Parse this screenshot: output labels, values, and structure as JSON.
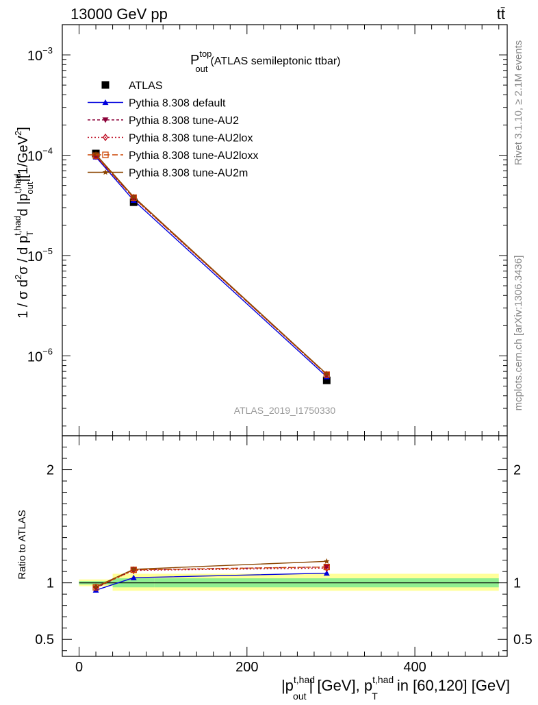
{
  "header": {
    "left": "13000 GeV pp",
    "right": "tt̄"
  },
  "side_labels": {
    "rivet": "Rivet 3.1.10, ≥ 2.1M events",
    "mcplots": "mcplots.cern.ch [arXiv:1306.3436]"
  },
  "analysis_id": "ATLAS_2019_I1750330",
  "colors": {
    "data": "#000000",
    "default": "#0000dd",
    "au2": "#8b0038",
    "au2lox": "#bb0018",
    "au2loxx": "#cc4400",
    "au2m": "#8b4500",
    "band_inner": "#90ee90",
    "band_outer": "#ffff99"
  },
  "chart_data": [
    {
      "type": "line",
      "panel": "main",
      "title": {
        "main": "P",
        "sup": "top",
        "sub": "out",
        "rest": "(ATLAS semileptonic ttbar)"
      },
      "ylabel": {
        "prefix": "1 / σ d",
        "p2": "2",
        "sigma": "σ / d p",
        "psup1": "t,had",
        "psub1": "T",
        "mid": " d |p",
        "psup2": "t,had",
        "psub2": "out",
        "unit": "|[1/GeV",
        "unitsup": "2",
        "close": "]"
      },
      "yscale": "log",
      "xlim": [
        -20,
        510
      ],
      "ylim": [
        1.6e-07,
        0.002
      ],
      "yticks": [
        {
          "value": 0.001,
          "base": "10",
          "exp": "−3"
        },
        {
          "value": 0.0001,
          "base": "10",
          "exp": "−4"
        },
        {
          "value": 1e-05,
          "base": "10",
          "exp": "−5"
        },
        {
          "value": 1e-06,
          "base": "10",
          "exp": "−6"
        }
      ],
      "legend_position": "top-left",
      "series": [
        {
          "key": "data",
          "name": "ATLAS",
          "marker": "square",
          "dash": "",
          "x": [
            20,
            65,
            295
          ],
          "y": [
            0.000104,
            3.4e-05,
            5.7e-07
          ]
        },
        {
          "key": "default",
          "name": "Pythia 8.308 default",
          "marker": "triangle-up",
          "dash": "",
          "x": [
            20,
            65,
            295
          ],
          "y": [
            9.6e-05,
            3.55e-05,
            6.2e-07
          ]
        },
        {
          "key": "au2",
          "name": "Pythia 8.308 tune-AU2",
          "marker": "triangle-down",
          "dash": "4,3",
          "x": [
            20,
            65,
            295
          ],
          "y": [
            9.8e-05,
            3.77e-05,
            6.5e-07
          ]
        },
        {
          "key": "au2lox",
          "name": "Pythia 8.308 tune-AU2lox",
          "marker": "diamond-open",
          "dash": "2,3",
          "x": [
            20,
            65,
            295
          ],
          "y": [
            9.8e-05,
            3.75e-05,
            6.5e-07
          ]
        },
        {
          "key": "au2loxx",
          "name": "Pythia 8.308 tune-AU2loxx",
          "marker": "square-open",
          "dash": "8,4",
          "x": [
            20,
            65,
            295
          ],
          "y": [
            9.9e-05,
            3.78e-05,
            6.5e-07
          ]
        },
        {
          "key": "au2m",
          "name": "Pythia 8.308 tune-AU2m",
          "marker": "star",
          "dash": "",
          "x": [
            20,
            65,
            295
          ],
          "y": [
            0.000102,
            3.85e-05,
            6.6e-07
          ]
        }
      ]
    },
    {
      "type": "line",
      "panel": "ratio",
      "ylabel": "Ratio to ATLAS",
      "xlabel": {
        "a": "|p",
        "asup": "t,had",
        "asub": "out",
        "b": "| [GeV], p",
        "bsup": "t,had",
        "bsub": "T",
        "c": " in [60,120] [GeV]"
      },
      "xlim": [
        -20,
        510
      ],
      "ylim": [
        0.35,
        2.3
      ],
      "xticks": [
        {
          "value": 0,
          "label": "0"
        },
        {
          "value": 200,
          "label": "200"
        },
        {
          "value": 400,
          "label": "400"
        }
      ],
      "yticks": [
        {
          "value": 0.5,
          "label": "0.5"
        },
        {
          "value": 1,
          "label": "1"
        },
        {
          "value": 2,
          "label": "2"
        }
      ],
      "bands": [
        {
          "x": [
            0,
            40
          ],
          "inner": [
            0.985,
            1.015
          ],
          "outer": [
            0.97,
            1.03
          ]
        },
        {
          "x": [
            40,
            90
          ],
          "inner": [
            0.96,
            1.04
          ],
          "outer": [
            0.93,
            1.08
          ]
        },
        {
          "x": [
            90,
            500
          ],
          "inner": [
            0.96,
            1.04
          ],
          "outer": [
            0.93,
            1.08
          ]
        }
      ],
      "series": [
        {
          "key": "default",
          "marker": "triangle-up",
          "dash": "",
          "x": [
            20,
            65,
            295
          ],
          "y": [
            0.935,
            1.045,
            1.085
          ]
        },
        {
          "key": "au2",
          "marker": "triangle-down",
          "dash": "4,3",
          "x": [
            20,
            65,
            295
          ],
          "y": [
            0.955,
            1.115,
            1.14
          ]
        },
        {
          "key": "au2lox",
          "marker": "diamond-open",
          "dash": "2,3",
          "x": [
            20,
            65,
            295
          ],
          "y": [
            0.96,
            1.11,
            1.13
          ]
        },
        {
          "key": "au2loxx",
          "marker": "square-open",
          "dash": "8,4",
          "x": [
            20,
            65,
            295
          ],
          "y": [
            0.96,
            1.115,
            1.14
          ]
        },
        {
          "key": "au2m",
          "marker": "star",
          "dash": "",
          "x": [
            20,
            65,
            295
          ],
          "y": [
            0.965,
            1.12,
            1.19
          ]
        }
      ]
    }
  ]
}
